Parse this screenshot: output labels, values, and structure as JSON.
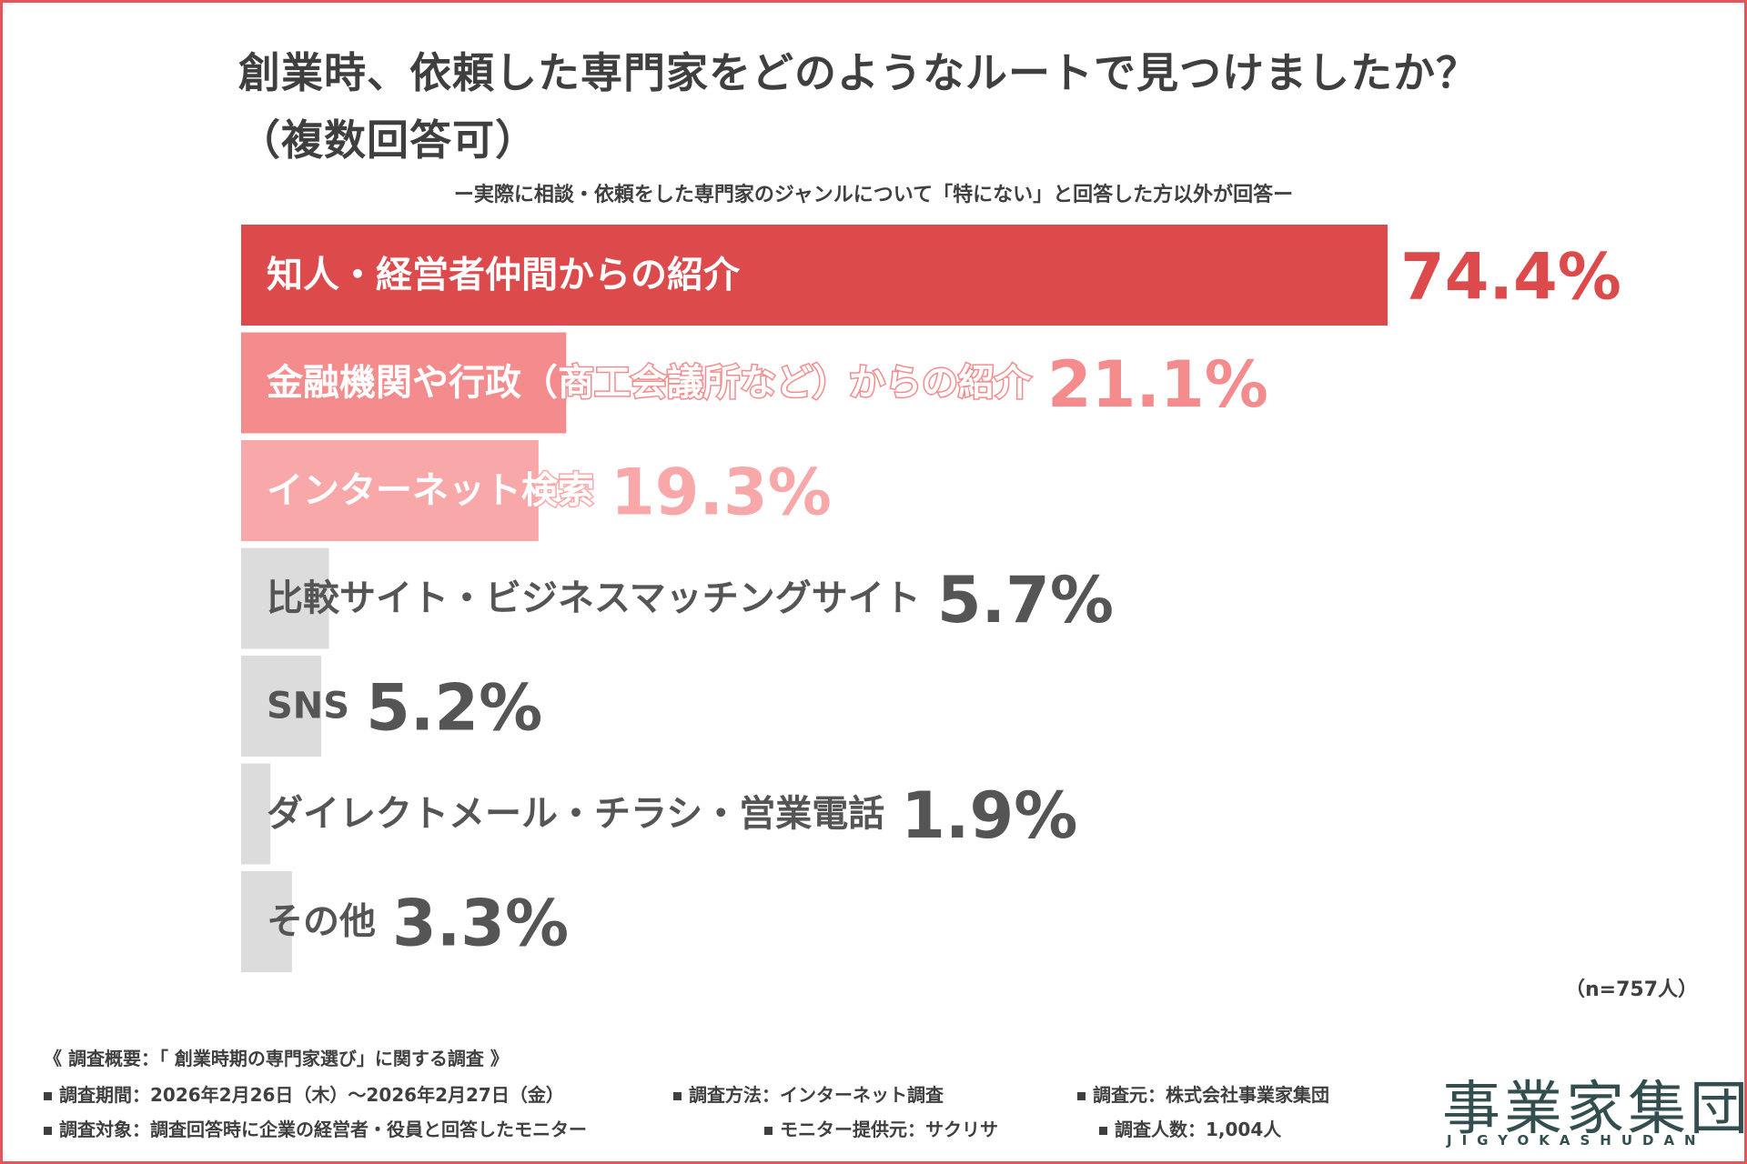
{
  "title": {
    "line1": "創業時、依頼した専門家をどのようなルートで見つけましたか？",
    "line2": "（複数回答可）"
  },
  "subtitle": "ー実際に相談・依頼をした専門家のジャンルについて「特にない」と回答した方以外が回答ー",
  "chart_data": {
    "type": "bar",
    "orientation": "horizontal",
    "categories": [
      "知人・経営者仲間からの紹介",
      "金融機関や行政（商工会議所など）からの紹介",
      "インターネット検索",
      "比較サイト・ビジネスマッチングサイト",
      "SNS",
      "ダイレクトメール・チラシ・営業電話",
      "その他"
    ],
    "values": [
      74.4,
      21.1,
      19.3,
      5.7,
      5.2,
      1.9,
      3.3
    ],
    "value_labels": [
      "74.4%",
      "21.1%",
      "19.3%",
      "5.7%",
      "5.2%",
      "1.9%",
      "3.3%"
    ],
    "bar_colors": [
      "#dc4a4c",
      "#f48b8d",
      "#f8a8a9",
      "#dcdcdc",
      "#dcdcdc",
      "#dcdcdc",
      "#dcdcdc"
    ],
    "value_colors": [
      "#dc4a4c",
      "#f48b8d",
      "#f8a8a9",
      "#555555",
      "#555555",
      "#555555",
      "#555555"
    ],
    "xlim": [
      0,
      74.4
    ],
    "grid": false,
    "legend": "none"
  },
  "n_label": "（n=757人）",
  "survey": {
    "heading": "《 調査概要：「 創業時期の専門家選び」に関する調査 》",
    "period": "調査期間：2026年2月26日（木）〜2026年2月27日（金）",
    "method": "調査方法：インターネット調査",
    "source": "調査元：株式会社事業家集団",
    "target": "調査対象：調査回答時に企業の経営者・役員と回答したモニター",
    "provider": "モニター提供元：サクリサ",
    "count": "調査人数：1,004人"
  },
  "logo": {
    "text": "事業家集団",
    "sub": "JIGYOKASHUDAN"
  },
  "colors": {
    "border": "#e0565c",
    "text": "#3f3f3f",
    "logo": "#324e4e"
  }
}
